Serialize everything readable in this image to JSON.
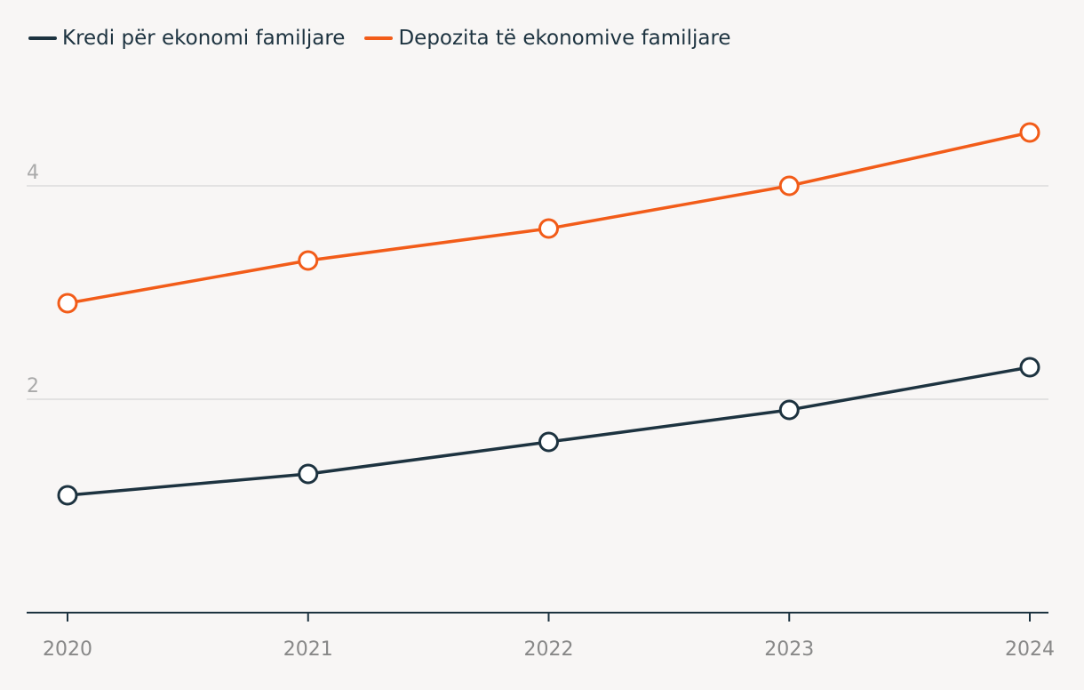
{
  "chart_data": {
    "type": "line",
    "title": "",
    "xlabel": "",
    "ylabel": "",
    "x": [
      "2020",
      "2021",
      "2022",
      "2023",
      "2024"
    ],
    "series": [
      {
        "name": "Kredi për ekonomi familjare",
        "color": "#1d3340",
        "values": [
          1.1,
          1.3,
          1.6,
          1.9,
          2.3
        ]
      },
      {
        "name": "Depozita të ekonomive familjare",
        "color": "#f25c19",
        "values": [
          2.9,
          3.3,
          3.6,
          4.0,
          4.5
        ]
      }
    ],
    "ylim": [
      0,
      5
    ],
    "yticks": [
      "2",
      "4"
    ],
    "grid": true,
    "legend": "top-left"
  }
}
